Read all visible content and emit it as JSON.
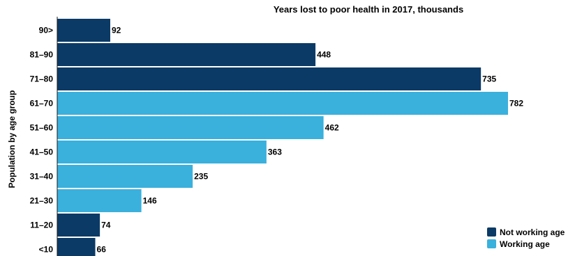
{
  "chart_data": {
    "type": "bar",
    "orientation": "horizontal",
    "title": "Years lost to poor health in 2017, thousands",
    "ylabel": "Population by age group",
    "xlabel": "",
    "categories": [
      "90>",
      "81–90",
      "71–80",
      "61–70",
      "51–60",
      "41–50",
      "31–40",
      "21–30",
      "11–20",
      "<10"
    ],
    "values": [
      92,
      448,
      735,
      782,
      462,
      363,
      235,
      146,
      74,
      66
    ],
    "groups": [
      "not-working",
      "not-working",
      "not-working",
      "working",
      "working",
      "working",
      "working",
      "working",
      "not-working",
      "not-working"
    ],
    "xlim": [
      0,
      782
    ],
    "grid": false,
    "legend_position": "bottom-right",
    "legend": [
      {
        "key": "not-working",
        "label": "Not working age",
        "color": "#0b3a66"
      },
      {
        "key": "working",
        "label": "Working age",
        "color": "#3ab0dd"
      }
    ]
  }
}
